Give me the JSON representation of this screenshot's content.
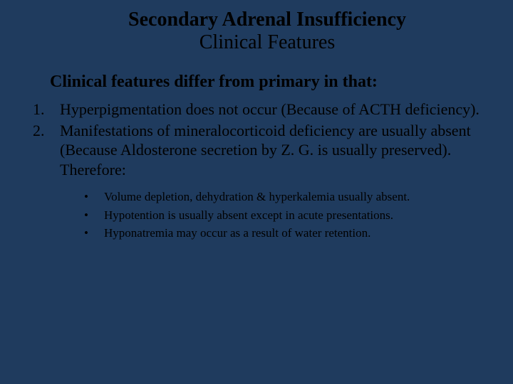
{
  "background_color": "#1f3b5e",
  "text_color": "#000000",
  "title": {
    "line1": "Secondary Adrenal Insufficiency",
    "line2": "Clinical Features",
    "fontsize": 28,
    "line1_weight": "bold",
    "line2_weight": "normal"
  },
  "intro": {
    "text": "Clinical features differ from primary in that:",
    "fontsize": 24,
    "weight": "bold"
  },
  "numbered": {
    "fontsize": 22,
    "items": [
      {
        "num": "1.",
        "text": "Hyperpigmentation does not occur (Because of ACTH deficiency)."
      },
      {
        "num": "2.",
        "text": " Manifestations of mineralocorticoid deficiency are usually absent (Because Aldosterone secretion by Z. G. is usually preserved). Therefore:"
      }
    ]
  },
  "bullets": {
    "fontsize": 17,
    "marker": "•",
    "items": [
      "Volume depletion, dehydration & hyperkalemia usually absent.",
      "Hypotention is usually absent except in acute presentations.",
      "Hyponatremia may occur as a result of water retention."
    ]
  }
}
